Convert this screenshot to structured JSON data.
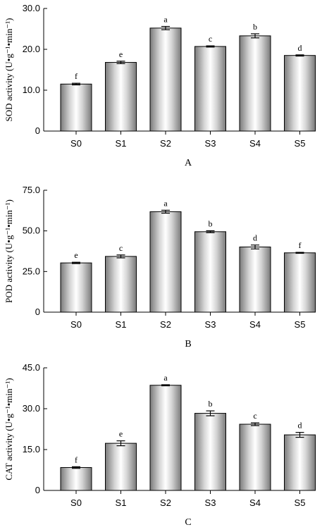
{
  "chart_data": [
    {
      "type": "bar",
      "panel_label": "A",
      "ylabel": "SOD activity (U•g⁻¹•min⁻¹)",
      "categories": [
        "S0",
        "S1",
        "S2",
        "S3",
        "S4",
        "S5"
      ],
      "values": [
        11.5,
        16.8,
        25.2,
        20.7,
        23.3,
        18.5
      ],
      "errors": [
        0.2,
        0.3,
        0.4,
        0.15,
        0.5,
        0.15
      ],
      "significance": [
        "f",
        "e",
        "a",
        "c",
        "b",
        "d"
      ],
      "ylim": [
        0,
        30
      ],
      "yticks": [
        0,
        10,
        20,
        30
      ],
      "ytick_labels": [
        "0",
        "10.0",
        "20.0",
        "30.0"
      ],
      "grid": false
    },
    {
      "type": "bar",
      "panel_label": "B",
      "ylabel": "POD activity (U•g⁻¹•min⁻¹)",
      "categories": [
        "S0",
        "S1",
        "S2",
        "S3",
        "S4",
        "S5"
      ],
      "values": [
        30.3,
        34.3,
        61.8,
        49.5,
        40.1,
        36.5
      ],
      "errors": [
        0.4,
        0.9,
        0.9,
        0.6,
        1.2,
        0.3
      ],
      "significance": [
        "e",
        "c",
        "a",
        "b",
        "d",
        "f"
      ],
      "ylim": [
        0,
        75
      ],
      "yticks": [
        0,
        25,
        50,
        75
      ],
      "ytick_labels": [
        "0",
        "25.0",
        "50.0",
        "75.0"
      ],
      "grid": false
    },
    {
      "type": "bar",
      "panel_label": "C",
      "ylabel": "CAT activity (U•g⁻¹•min⁻¹)",
      "categories": [
        "S0",
        "S1",
        "S2",
        "S3",
        "S4",
        "S5"
      ],
      "values": [
        8.4,
        17.3,
        38.6,
        28.3,
        24.3,
        20.4
      ],
      "errors": [
        0.3,
        0.9,
        0.2,
        0.9,
        0.5,
        0.9
      ],
      "significance": [
        "f",
        "e",
        "a",
        "b",
        "c",
        "d"
      ],
      "ylim": [
        0,
        45
      ],
      "yticks": [
        0,
        15,
        30,
        45
      ],
      "ytick_labels": [
        "0",
        "15.0",
        "30.0",
        "45.0"
      ],
      "grid": false
    }
  ]
}
